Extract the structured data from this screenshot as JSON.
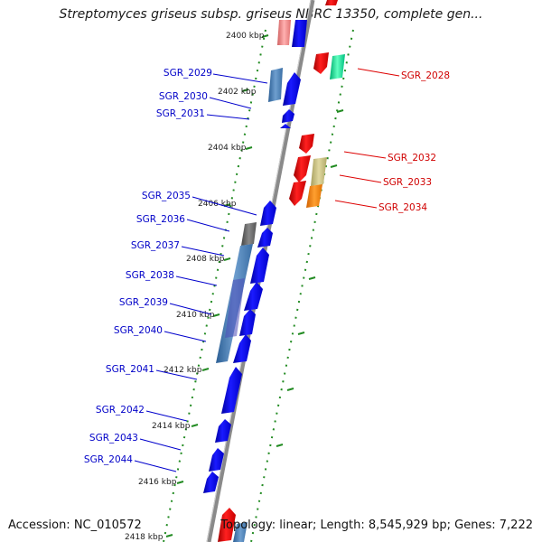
{
  "title": "Streptomyces griseus subsp. griseus NBRC 13350, complete gen...",
  "footer": {
    "accession": "Accession: NC_010572",
    "summary": "Topology: linear; Length: 8,545,929 bp; Genes: 7,222"
  },
  "kbp_markers": [
    "2400 kbp",
    "2402 kbp",
    "2404 kbp",
    "2406 kbp",
    "2408 kbp",
    "2410 kbp",
    "2412 kbp",
    "2414 kbp",
    "2416 kbp",
    "2418 kbp"
  ],
  "forward_genes": [
    "SGR_2029",
    "SGR_2030",
    "SGR_2031",
    "SGR_2035",
    "SGR_2036",
    "SGR_2037",
    "SGR_2038",
    "SGR_2039",
    "SGR_2040",
    "SGR_2041",
    "SGR_2042",
    "SGR_2043",
    "SGR_2044"
  ],
  "reverse_genes": [
    "SGR_2028",
    "SGR_2032",
    "SGR_2033",
    "SGR_2034"
  ],
  "colors": {
    "forward_gene": "#0000ee",
    "reverse_gene": "#ee0000",
    "forward_label": "#0000c8",
    "reverse_label": "#d00000",
    "axis": "#888888",
    "track_dots": "#228b22",
    "gene_blue_gray": "#4a7fb5",
    "gene_gray": "#666666",
    "gene_olive": "#c8c080",
    "gene_orange": "#ff8800",
    "gene_mint": "#00e090",
    "gene_pink": "#f08080"
  }
}
